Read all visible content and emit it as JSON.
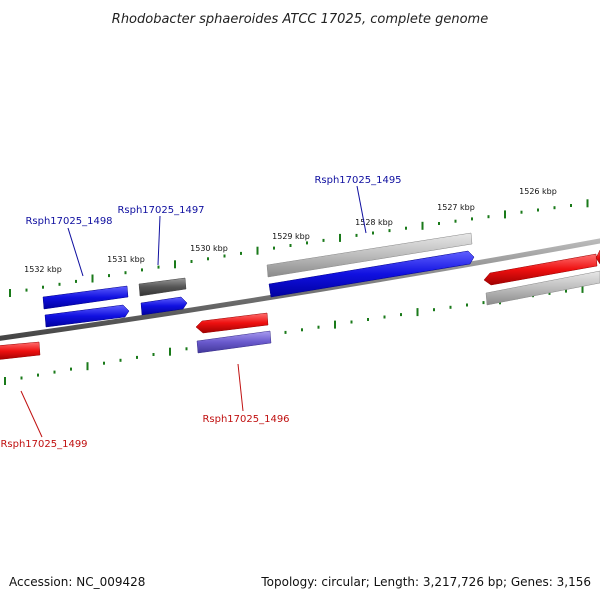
{
  "title": "Rhodobacter sphaeroides ATCC 17025, complete genome",
  "footer": {
    "accession": "Accession: NC_009428",
    "summary": "Topology: circular; Length: 3,217,726 bp; Genes: 3,156"
  },
  "colors": {
    "forward": "#1010e0",
    "reverse": "#e01010",
    "gray_light": "#bbbbbb",
    "gray_dark": "#555555",
    "purple": "#6a5acd",
    "tick": "#1a7a1a",
    "backbone": "#777777"
  },
  "kbp_labels": [
    "1526 kbp",
    "1527 kbp",
    "1528 kbp",
    "1529 kbp",
    "1530 kbp",
    "1531 kbp",
    "1532 kbp"
  ],
  "gene_labels": [
    {
      "id": "Rsph17025_1495",
      "color": "#1010a0"
    },
    {
      "id": "Rsph17025_1497",
      "color": "#1010a0"
    },
    {
      "id": "Rsph17025_1498",
      "color": "#1010a0"
    },
    {
      "id": "Rsph17025_1496",
      "color": "#c01010"
    },
    {
      "id": "Rsph17025_1499",
      "color": "#c01010"
    }
  ]
}
